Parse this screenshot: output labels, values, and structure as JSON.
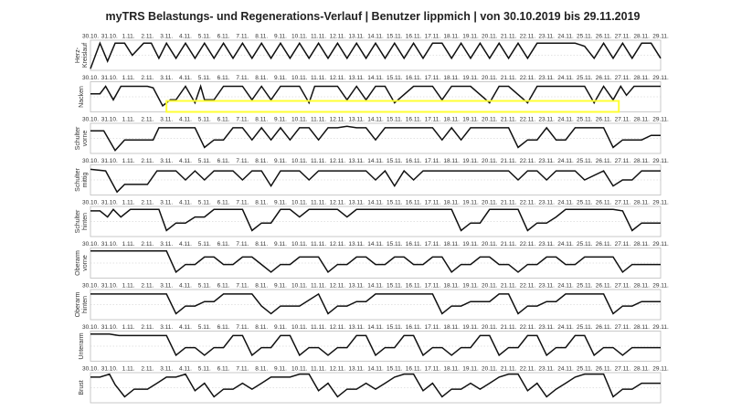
{
  "title": "myTRS Belastungs- und Regenerations-Verlauf | Benutzer lippmich | von 30.10.2019 bis 29.11.2019",
  "colors": {
    "line": "#111111",
    "highlight": "#ffff33",
    "frame": "#bdbdbd"
  },
  "chart_data": {
    "type": "line",
    "ylim": [
      0,
      1
    ],
    "grid": "dashed midline",
    "x_tick_labels": [
      "30.10.",
      "31.10.",
      "1.11.",
      "2.11.",
      "3.11.",
      "4.11.",
      "5.11.",
      "6.11.",
      "7.11.",
      "8.11.",
      "9.11.",
      "10.11.",
      "11.11.",
      "12.11.",
      "13.11.",
      "14.11.",
      "15.11.",
      "16.11.",
      "17.11.",
      "18.11.",
      "19.11.",
      "20.11.",
      "21.11.",
      "22.11.",
      "23.11.",
      "24.11.",
      "25.11.",
      "26.11.",
      "27.11.",
      "28.11.",
      "29.11."
    ],
    "highlight": {
      "panel": "Nacken",
      "x_from": 4.0,
      "x_to": 27.8
    },
    "series": [
      {
        "name": "Herz-\nKreislauf",
        "x": [
          0,
          0.5,
          0.9,
          1.3,
          1.8,
          2.2,
          2.8,
          3.2,
          3.6,
          4.0,
          4.5,
          5.0,
          5.5,
          6.0,
          6.5,
          7.0,
          7.5,
          8.0,
          8.5,
          9.0,
          9.5,
          10.0,
          10.5,
          11.0,
          11.5,
          12.0,
          12.5,
          13.0,
          13.5,
          14.0,
          14.5,
          15.0,
          15.5,
          16.0,
          16.5,
          17.0,
          17.5,
          18.0,
          18.5,
          19.0,
          19.5,
          20.0,
          20.5,
          21.0,
          21.5,
          22.0,
          22.5,
          23.0,
          23.5,
          24.0,
          25.5,
          26.0,
          26.5,
          27.0,
          27.5,
          28.0,
          28.5,
          29.0,
          29.5,
          30.0
        ],
        "y": [
          0.05,
          0.9,
          0.3,
          0.9,
          0.9,
          0.5,
          0.9,
          0.9,
          0.4,
          0.9,
          0.4,
          0.9,
          0.4,
          0.9,
          0.4,
          0.9,
          0.4,
          0.9,
          0.4,
          0.9,
          0.4,
          0.9,
          0.4,
          0.9,
          0.4,
          0.9,
          0.4,
          0.9,
          0.4,
          0.9,
          0.4,
          0.9,
          0.4,
          0.9,
          0.4,
          0.9,
          0.4,
          0.9,
          0.9,
          0.4,
          0.9,
          0.4,
          0.9,
          0.4,
          0.9,
          0.4,
          0.9,
          0.4,
          0.9,
          0.9,
          0.9,
          0.8,
          0.4,
          0.9,
          0.4,
          0.9,
          0.4,
          0.9,
          0.9,
          0.4
        ]
      },
      {
        "name": "Nacken",
        "x": [
          0,
          0.5,
          0.8,
          1.2,
          1.6,
          2.0,
          3.0,
          3.3,
          3.8,
          4.2,
          4.5,
          5.0,
          5.5,
          5.8,
          6.0,
          6.5,
          7.0,
          8.0,
          8.5,
          9.0,
          9.5,
          10.0,
          10.5,
          11.0,
          11.5,
          11.8,
          12.3,
          13.0,
          13.5,
          14.0,
          14.5,
          15.0,
          15.5,
          16.0,
          17.0,
          18.0,
          18.5,
          19.0,
          20.0,
          21.0,
          21.5,
          22.0,
          23.0,
          23.5,
          24.0,
          25.0,
          26.0,
          26.5,
          27.0,
          27.5,
          27.9,
          28.2,
          28.6,
          29.0,
          29.5,
          30.0
        ],
        "y": [
          0.6,
          0.6,
          0.85,
          0.4,
          0.85,
          0.85,
          0.85,
          0.8,
          0.2,
          0.4,
          0.4,
          0.85,
          0.3,
          0.85,
          0.4,
          0.4,
          0.85,
          0.85,
          0.4,
          0.85,
          0.4,
          0.85,
          0.85,
          0.85,
          0.3,
          0.85,
          0.85,
          0.85,
          0.4,
          0.85,
          0.4,
          0.85,
          0.85,
          0.3,
          0.85,
          0.85,
          0.4,
          0.85,
          0.85,
          0.3,
          0.85,
          0.85,
          0.3,
          0.85,
          0.85,
          0.85,
          0.85,
          0.3,
          0.85,
          0.4,
          0.85,
          0.55,
          0.85,
          0.85,
          0.85,
          0.85
        ]
      },
      {
        "name": "Schulter\nvorne",
        "x": [
          0,
          0.7,
          1.3,
          1.8,
          2.3,
          3.0,
          3.3,
          3.6,
          4.5,
          5.0,
          5.5,
          6.0,
          6.5,
          7.0,
          7.5,
          8.0,
          8.5,
          9.0,
          9.5,
          10.0,
          10.5,
          11.0,
          11.5,
          12.0,
          12.5,
          13.0,
          13.5,
          14.0,
          14.5,
          15.0,
          15.5,
          16.0,
          16.5,
          17.0,
          17.5,
          18.0,
          18.5,
          19.0,
          19.5,
          20.0,
          20.5,
          21.0,
          21.5,
          22.0,
          22.5,
          23.0,
          23.5,
          24.0,
          24.5,
          25.0,
          25.5,
          26.0,
          27.0,
          27.5,
          28.0,
          28.5,
          29.0,
          29.5,
          30.0
        ],
        "y": [
          0.75,
          0.75,
          0.1,
          0.45,
          0.45,
          0.45,
          0.45,
          0.85,
          0.85,
          0.85,
          0.85,
          0.2,
          0.45,
          0.45,
          0.85,
          0.85,
          0.45,
          0.85,
          0.45,
          0.85,
          0.45,
          0.85,
          0.85,
          0.45,
          0.85,
          0.85,
          0.9,
          0.85,
          0.85,
          0.45,
          0.85,
          0.85,
          0.85,
          0.85,
          0.85,
          0.85,
          0.45,
          0.85,
          0.45,
          0.85,
          0.85,
          0.85,
          0.85,
          0.85,
          0.2,
          0.45,
          0.45,
          0.85,
          0.45,
          0.45,
          0.85,
          0.85,
          0.85,
          0.2,
          0.45,
          0.45,
          0.45,
          0.6,
          0.6
        ]
      },
      {
        "name": "Schulter\nmittig",
        "x": [
          0,
          0.8,
          1.4,
          1.8,
          2.3,
          3.0,
          3.5,
          4.0,
          4.5,
          5.0,
          5.5,
          6.0,
          6.5,
          7.0,
          7.5,
          8.0,
          8.5,
          9.0,
          9.5,
          10.0,
          10.5,
          11.0,
          11.5,
          12.0,
          12.5,
          13.0,
          13.5,
          14.0,
          14.5,
          15.0,
          15.5,
          16.0,
          16.5,
          17.0,
          17.5,
          18.0,
          18.5,
          19.0,
          19.5,
          20.0,
          20.5,
          21.0,
          21.5,
          22.0,
          22.5,
          23.0,
          23.5,
          24.0,
          24.5,
          25.0,
          25.5,
          26.0,
          27.0,
          27.5,
          28.0,
          28.5,
          29.0,
          29.5,
          30.0
        ],
        "y": [
          0.85,
          0.8,
          0.1,
          0.35,
          0.35,
          0.35,
          0.8,
          0.8,
          0.8,
          0.5,
          0.8,
          0.5,
          0.8,
          0.8,
          0.8,
          0.5,
          0.8,
          0.8,
          0.3,
          0.8,
          0.8,
          0.8,
          0.5,
          0.8,
          0.8,
          0.8,
          0.8,
          0.8,
          0.8,
          0.5,
          0.8,
          0.3,
          0.8,
          0.5,
          0.8,
          0.8,
          0.8,
          0.8,
          0.8,
          0.8,
          0.8,
          0.8,
          0.8,
          0.8,
          0.5,
          0.8,
          0.8,
          0.5,
          0.8,
          0.8,
          0.8,
          0.5,
          0.8,
          0.3,
          0.5,
          0.5,
          0.8,
          0.8,
          0.8
        ]
      },
      {
        "name": "Schulter\nhinten",
        "x": [
          0,
          0.5,
          0.9,
          1.2,
          1.6,
          2.1,
          3.0,
          3.6,
          4.0,
          4.5,
          5.0,
          5.5,
          6.0,
          6.5,
          7.0,
          7.5,
          8.0,
          8.5,
          9.0,
          9.5,
          10.0,
          10.5,
          11.0,
          11.5,
          12.0,
          12.5,
          13.0,
          13.5,
          14.0,
          14.5,
          15.0,
          15.5,
          16.0,
          16.5,
          17.0,
          17.5,
          18.0,
          18.5,
          19.0,
          19.5,
          20.0,
          20.5,
          21.0,
          21.5,
          22.0,
          22.5,
          23.0,
          23.5,
          24.0,
          24.5,
          25.0,
          25.5,
          26.0,
          26.5,
          27.0,
          27.5,
          28.0,
          28.5,
          29.0,
          29.5,
          30.0
        ],
        "y": [
          0.85,
          0.85,
          0.65,
          0.9,
          0.65,
          0.9,
          0.9,
          0.9,
          0.2,
          0.45,
          0.45,
          0.65,
          0.65,
          0.9,
          0.9,
          0.9,
          0.9,
          0.2,
          0.45,
          0.45,
          0.9,
          0.9,
          0.65,
          0.9,
          0.9,
          0.9,
          0.9,
          0.65,
          0.9,
          0.9,
          0.9,
          0.9,
          0.9,
          0.9,
          0.9,
          0.9,
          0.9,
          0.9,
          0.9,
          0.2,
          0.45,
          0.45,
          0.9,
          0.9,
          0.9,
          0.9,
          0.2,
          0.45,
          0.45,
          0.65,
          0.9,
          0.9,
          0.9,
          0.9,
          0.9,
          0.9,
          0.85,
          0.2,
          0.45,
          0.45,
          0.45
        ]
      },
      {
        "name": "Oberarm\nvorne",
        "x": [
          0,
          1.0,
          2.0,
          3.0,
          4.0,
          4.5,
          5.0,
          5.5,
          6.0,
          6.5,
          7.0,
          7.5,
          8.0,
          8.5,
          9.0,
          9.5,
          10.0,
          10.5,
          11.0,
          11.5,
          12.0,
          12.5,
          13.0,
          13.5,
          14.0,
          14.5,
          15.0,
          15.5,
          16.0,
          16.5,
          17.0,
          17.5,
          18.0,
          18.5,
          19.0,
          19.5,
          20.0,
          20.5,
          21.0,
          21.5,
          22.0,
          22.5,
          23.0,
          23.5,
          24.0,
          24.5,
          25.0,
          25.5,
          26.0,
          26.5,
          27.0,
          27.5,
          28.0,
          28.5,
          29.0,
          29.5,
          30.0
        ],
        "y": [
          0.9,
          0.9,
          0.9,
          0.9,
          0.9,
          0.2,
          0.45,
          0.45,
          0.7,
          0.7,
          0.45,
          0.45,
          0.7,
          0.7,
          0.45,
          0.2,
          0.45,
          0.45,
          0.7,
          0.7,
          0.7,
          0.2,
          0.45,
          0.45,
          0.7,
          0.7,
          0.45,
          0.45,
          0.7,
          0.7,
          0.45,
          0.45,
          0.7,
          0.7,
          0.2,
          0.45,
          0.45,
          0.7,
          0.7,
          0.45,
          0.45,
          0.2,
          0.45,
          0.45,
          0.7,
          0.7,
          0.45,
          0.45,
          0.7,
          0.7,
          0.7,
          0.7,
          0.2,
          0.45,
          0.45,
          0.45,
          0.45
        ]
      },
      {
        "name": "Oberarm\nhinten",
        "x": [
          0,
          1.0,
          2.0,
          3.0,
          4.0,
          4.5,
          5.0,
          5.5,
          6.0,
          6.5,
          7.0,
          7.5,
          8.0,
          8.5,
          9.0,
          9.5,
          10.0,
          11.0,
          12.0,
          12.5,
          13.0,
          13.5,
          14.0,
          14.5,
          15.0,
          15.5,
          16.0,
          17.0,
          18.0,
          18.5,
          19.0,
          19.5,
          20.0,
          20.5,
          21.0,
          21.5,
          22.0,
          22.5,
          23.0,
          23.5,
          24.0,
          24.5,
          25.0,
          25.5,
          26.0,
          26.5,
          27.0,
          27.5,
          28.0,
          28.5,
          29.0,
          29.5,
          30.0
        ],
        "y": [
          0.85,
          0.85,
          0.85,
          0.85,
          0.85,
          0.2,
          0.45,
          0.45,
          0.6,
          0.6,
          0.85,
          0.85,
          0.85,
          0.85,
          0.45,
          0.2,
          0.45,
          0.45,
          0.85,
          0.2,
          0.45,
          0.45,
          0.6,
          0.6,
          0.85,
          0.85,
          0.85,
          0.85,
          0.85,
          0.2,
          0.45,
          0.45,
          0.6,
          0.6,
          0.6,
          0.85,
          0.85,
          0.2,
          0.45,
          0.45,
          0.6,
          0.6,
          0.85,
          0.85,
          0.85,
          0.85,
          0.85,
          0.2,
          0.45,
          0.45,
          0.6,
          0.6,
          0.6
        ]
      },
      {
        "name": "Unterarm",
        "x": [
          0,
          1.0,
          1.5,
          2.0,
          3.0,
          4.0,
          4.5,
          5.0,
          5.5,
          6.0,
          6.5,
          7.0,
          7.5,
          8.0,
          8.5,
          9.0,
          9.5,
          10.0,
          10.5,
          11.0,
          11.5,
          12.0,
          12.5,
          13.0,
          13.5,
          14.0,
          14.5,
          15.0,
          15.5,
          16.0,
          16.5,
          17.0,
          17.5,
          18.0,
          18.5,
          19.0,
          19.5,
          20.0,
          20.5,
          21.0,
          21.5,
          22.0,
          22.5,
          23.0,
          23.5,
          24.0,
          24.5,
          25.0,
          25.5,
          26.0,
          26.5,
          27.0,
          27.5,
          28.0,
          28.5,
          29.0,
          29.5,
          30.0
        ],
        "y": [
          0.9,
          0.9,
          0.85,
          0.85,
          0.85,
          0.85,
          0.2,
          0.45,
          0.45,
          0.2,
          0.45,
          0.45,
          0.85,
          0.85,
          0.2,
          0.45,
          0.45,
          0.85,
          0.85,
          0.2,
          0.45,
          0.45,
          0.2,
          0.45,
          0.45,
          0.85,
          0.85,
          0.2,
          0.45,
          0.45,
          0.85,
          0.85,
          0.2,
          0.45,
          0.45,
          0.2,
          0.45,
          0.45,
          0.85,
          0.85,
          0.2,
          0.45,
          0.45,
          0.85,
          0.85,
          0.2,
          0.45,
          0.45,
          0.85,
          0.85,
          0.2,
          0.45,
          0.45,
          0.2,
          0.45,
          0.45,
          0.45,
          0.45
        ]
      },
      {
        "name": "Brust",
        "x": [
          0,
          0.5,
          1.0,
          1.3,
          1.8,
          2.3,
          3.0,
          3.5,
          4.0,
          4.5,
          5.0,
          5.5,
          6.0,
          6.5,
          7.0,
          7.5,
          8.0,
          8.5,
          9.0,
          9.5,
          10.0,
          10.5,
          11.0,
          11.5,
          12.0,
          12.5,
          13.0,
          13.5,
          14.0,
          14.5,
          15.0,
          15.5,
          16.0,
          16.5,
          17.0,
          17.5,
          18.0,
          18.5,
          19.0,
          19.5,
          20.0,
          20.5,
          21.0,
          21.5,
          22.0,
          22.5,
          23.0,
          23.5,
          24.0,
          24.5,
          25.0,
          25.5,
          26.0,
          26.5,
          27.0,
          27.5,
          28.0,
          28.5,
          29.0,
          29.5,
          30.0
        ],
        "y": [
          0.85,
          0.85,
          0.95,
          0.6,
          0.2,
          0.45,
          0.45,
          0.65,
          0.85,
          0.85,
          0.95,
          0.4,
          0.65,
          0.2,
          0.45,
          0.45,
          0.65,
          0.45,
          0.65,
          0.85,
          0.85,
          0.85,
          0.95,
          0.95,
          0.4,
          0.65,
          0.2,
          0.45,
          0.45,
          0.65,
          0.45,
          0.65,
          0.85,
          0.95,
          0.95,
          0.4,
          0.65,
          0.2,
          0.45,
          0.45,
          0.65,
          0.45,
          0.65,
          0.85,
          0.95,
          0.95,
          0.4,
          0.65,
          0.2,
          0.45,
          0.65,
          0.85,
          0.95,
          0.95,
          0.95,
          0.2,
          0.45,
          0.45,
          0.65,
          0.65,
          0.65
        ]
      }
    ]
  }
}
